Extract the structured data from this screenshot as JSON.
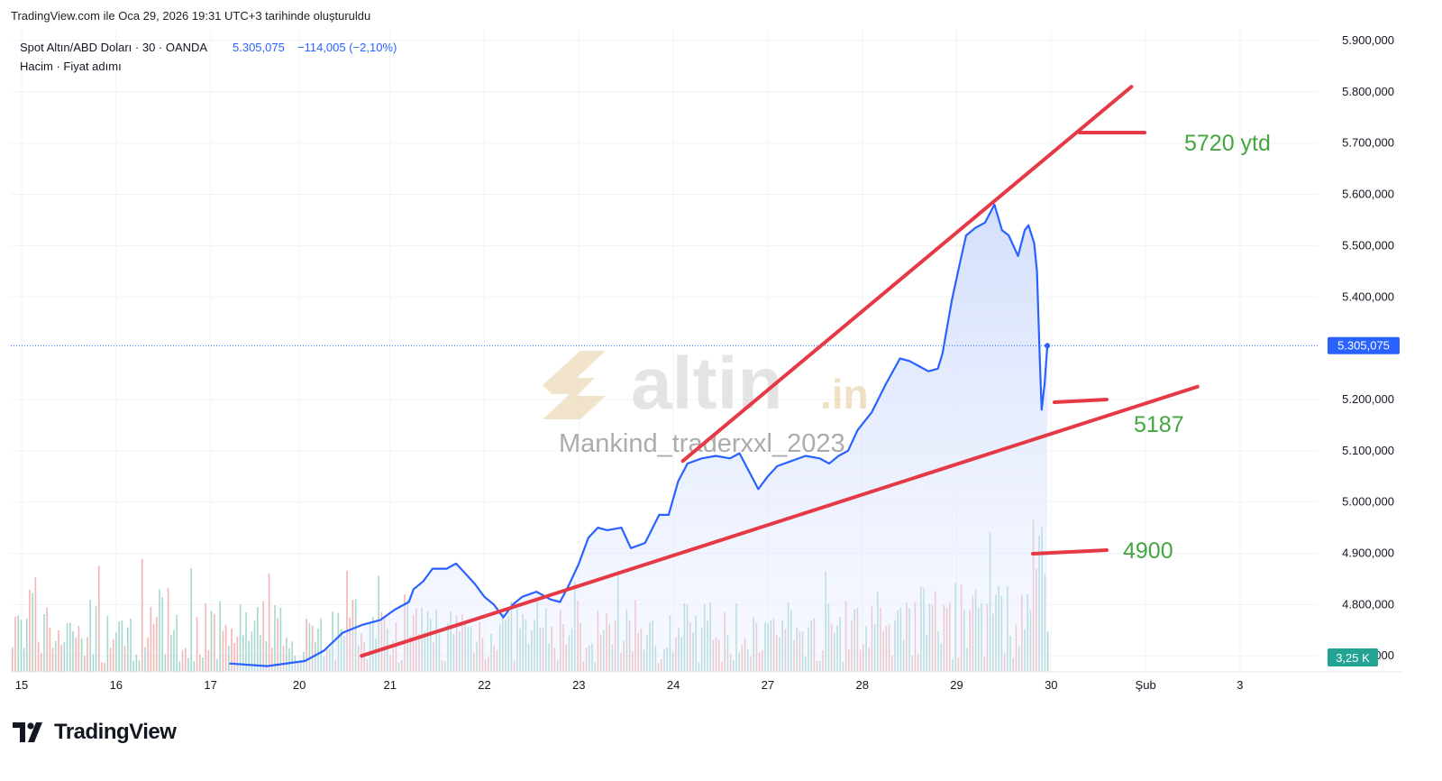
{
  "header": {
    "caption": "TradingView.com ile Oca 29, 2026 19:31 UTC+3 tarihinde oluşturuldu"
  },
  "legend": {
    "symbol": "Spot Altın/ABD Doları · 30 · OANDA",
    "price": "5.305,075",
    "change": "−114,005 (−2,10%)",
    "indicators": "Hacim · Fiyat adımı"
  },
  "watermark": {
    "brand": "altin",
    "brand_suffix": ".in",
    "author": "Mankind_traderxxl_2023"
  },
  "annotations": [
    {
      "text": "5720 ytd",
      "value": 5720
    },
    {
      "text": "5187",
      "value": 5187
    },
    {
      "text": "4900",
      "value": 4900
    }
  ],
  "badges": {
    "price": "5.305,075",
    "volume": "3,25 K"
  },
  "footer": {
    "brand": "TradingView"
  },
  "colors": {
    "line": "#2962ff",
    "area": "#c7d5fb",
    "trendline": "#e53946",
    "annotation_text": "#43a63e",
    "price_badge": "#2962ff",
    "volume_badge": "#22a393",
    "volume_up": "#a6d7cf",
    "volume_down": "#f2b6b6"
  },
  "chart_data": {
    "type": "line",
    "title": "Spot Altın/ABD Doları · 30 · OANDA",
    "ylim": [
      4700,
      5920
    ],
    "y_ticks": [
      {
        "value": 5900,
        "label": "5.900,000"
      },
      {
        "value": 5800,
        "label": "5.800,000"
      },
      {
        "value": 5700,
        "label": "5.700,000"
      },
      {
        "value": 5600,
        "label": "5.600,000"
      },
      {
        "value": 5500,
        "label": "5.500,000"
      },
      {
        "value": 5400,
        "label": "5.400,000"
      },
      {
        "value": 5200,
        "label": "5.200,000"
      },
      {
        "value": 5100,
        "label": "5.100,000"
      },
      {
        "value": 5000,
        "label": "5.000,000"
      },
      {
        "value": 4900,
        "label": "4.900,000"
      },
      {
        "value": 4800,
        "label": "4.800,000"
      },
      {
        "value": 4700,
        "label": "4.700,000"
      }
    ],
    "x_ticks": [
      {
        "pos": 0.0,
        "label": "15"
      },
      {
        "pos": 1.0,
        "label": "16"
      },
      {
        "pos": 2.0,
        "label": "17"
      },
      {
        "pos": 2.94,
        "label": "20"
      },
      {
        "pos": 3.9,
        "label": "21"
      },
      {
        "pos": 4.9,
        "label": "22"
      },
      {
        "pos": 5.9,
        "label": "23"
      },
      {
        "pos": 6.9,
        "label": "24"
      },
      {
        "pos": 7.9,
        "label": "27"
      },
      {
        "pos": 8.9,
        "label": "28"
      },
      {
        "pos": 9.9,
        "label": "29"
      },
      {
        "pos": 10.9,
        "label": "30"
      },
      {
        "pos": 11.9,
        "label": "Şub"
      },
      {
        "pos": 12.9,
        "label": "3"
      }
    ],
    "xlim": [
      -0.1,
      14.1
    ],
    "series": [
      {
        "values": [
          [
            2.2,
            4685
          ],
          [
            2.6,
            4680
          ],
          [
            3.0,
            4690
          ],
          [
            3.2,
            4710
          ],
          [
            3.4,
            4745
          ],
          [
            3.6,
            4760
          ],
          [
            3.8,
            4770
          ],
          [
            3.95,
            4790
          ],
          [
            4.1,
            4805
          ],
          [
            4.15,
            4830
          ],
          [
            4.25,
            4845
          ],
          [
            4.35,
            4870
          ],
          [
            4.5,
            4870
          ],
          [
            4.6,
            4880
          ],
          [
            4.7,
            4860
          ],
          [
            4.8,
            4840
          ],
          [
            4.9,
            4815
          ],
          [
            5.0,
            4800
          ],
          [
            5.1,
            4775
          ],
          [
            5.2,
            4800
          ],
          [
            5.3,
            4815
          ],
          [
            5.45,
            4825
          ],
          [
            5.6,
            4810
          ],
          [
            5.7,
            4805
          ],
          [
            5.8,
            4840
          ],
          [
            5.9,
            4880
          ],
          [
            6.0,
            4930
          ],
          [
            6.1,
            4950
          ],
          [
            6.2,
            4945
          ],
          [
            6.35,
            4950
          ],
          [
            6.45,
            4910
          ],
          [
            6.6,
            4920
          ],
          [
            6.75,
            4975
          ],
          [
            6.85,
            4975
          ],
          [
            6.95,
            5040
          ],
          [
            7.05,
            5075
          ],
          [
            7.2,
            5085
          ],
          [
            7.35,
            5090
          ],
          [
            7.5,
            5085
          ],
          [
            7.6,
            5095
          ],
          [
            7.7,
            5060
          ],
          [
            7.8,
            5025
          ],
          [
            7.9,
            5050
          ],
          [
            8.0,
            5070
          ],
          [
            8.15,
            5080
          ],
          [
            8.3,
            5090
          ],
          [
            8.45,
            5085
          ],
          [
            8.55,
            5075
          ],
          [
            8.65,
            5090
          ],
          [
            8.75,
            5100
          ],
          [
            8.85,
            5140
          ],
          [
            9.0,
            5175
          ],
          [
            9.15,
            5230
          ],
          [
            9.3,
            5280
          ],
          [
            9.4,
            5275
          ],
          [
            9.5,
            5265
          ],
          [
            9.6,
            5255
          ],
          [
            9.7,
            5260
          ],
          [
            9.75,
            5290
          ],
          [
            9.85,
            5395
          ],
          [
            9.95,
            5480
          ],
          [
            10.0,
            5520
          ],
          [
            10.1,
            5535
          ],
          [
            10.2,
            5545
          ],
          [
            10.3,
            5580
          ],
          [
            10.38,
            5530
          ],
          [
            10.45,
            5520
          ],
          [
            10.55,
            5480
          ],
          [
            10.62,
            5530
          ],
          [
            10.66,
            5540
          ],
          [
            10.72,
            5505
          ],
          [
            10.75,
            5450
          ],
          [
            10.78,
            5280
          ],
          [
            10.8,
            5180
          ],
          [
            10.83,
            5230
          ],
          [
            10.86,
            5305
          ]
        ]
      }
    ],
    "volume_max": 450,
    "current_price": 5305.075,
    "trendlines": [
      {
        "from": [
          7.0,
          5080
        ],
        "to": [
          11.75,
          5810
        ]
      },
      {
        "from": [
          3.6,
          4700
        ],
        "to": [
          12.45,
          5225
        ]
      }
    ]
  }
}
